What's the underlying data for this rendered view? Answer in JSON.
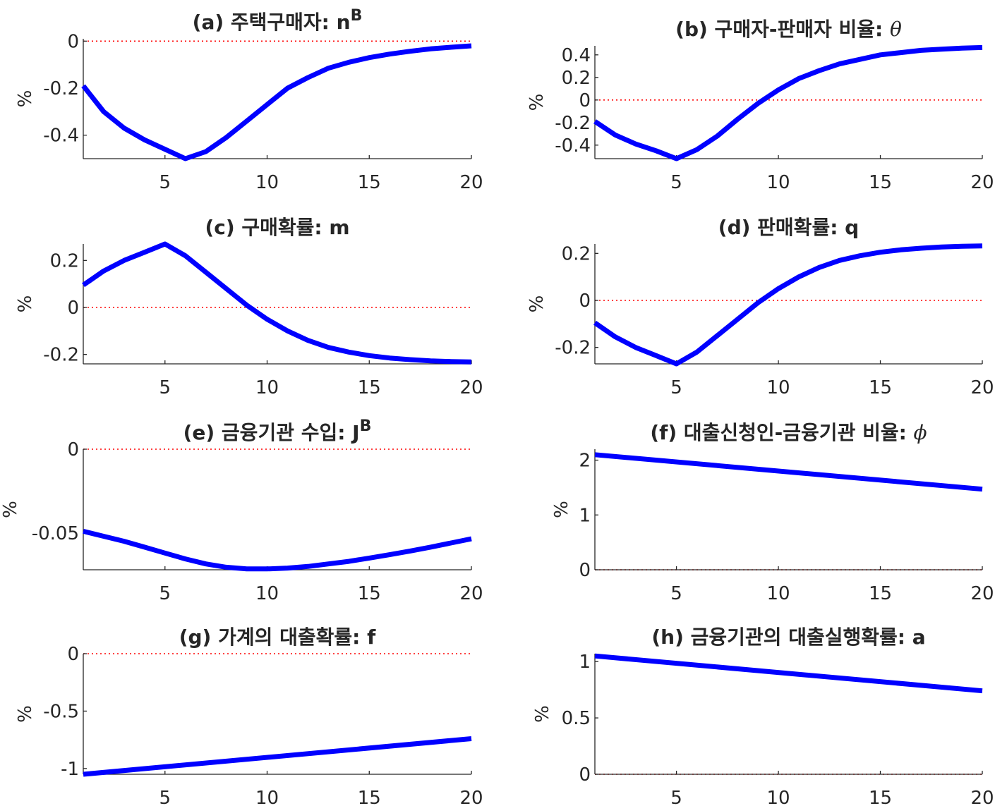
{
  "figure": {
    "ylabel": "%"
  },
  "chart_data": [
    {
      "id": "a",
      "type": "line",
      "title": "(a) 주택구매자: n",
      "title_sup": "B",
      "ylabel": "%",
      "xlim": [
        1,
        20
      ],
      "ylim": [
        -0.5,
        0.01
      ],
      "xticks": [
        5,
        10,
        15,
        20
      ],
      "yticks": [
        0,
        -0.2,
        -0.4
      ],
      "ytick_labels": [
        "0",
        "-0.2",
        "-0.4"
      ],
      "series": [
        {
          "x": [
            1,
            2,
            3,
            4,
            5,
            6,
            7,
            8,
            9,
            10,
            11,
            12,
            13,
            14,
            15,
            16,
            17,
            18,
            19,
            20
          ],
          "values": [
            -0.19,
            -0.3,
            -0.37,
            -0.42,
            -0.46,
            -0.5,
            -0.47,
            -0.41,
            -0.34,
            -0.27,
            -0.2,
            -0.155,
            -0.115,
            -0.09,
            -0.07,
            -0.055,
            -0.043,
            -0.033,
            -0.026,
            -0.02
          ]
        }
      ]
    },
    {
      "id": "b",
      "type": "line",
      "title": "(b) 구매자-판매자 비율: ",
      "title_sym": "θ",
      "ylabel": "%",
      "xlim": [
        1,
        20
      ],
      "ylim": [
        -0.52,
        0.48
      ],
      "xticks": [
        5,
        10,
        15,
        20
      ],
      "yticks": [
        0.4,
        0.2,
        0,
        -0.2,
        -0.4
      ],
      "ytick_labels": [
        "0.4",
        "0.2",
        "0",
        "-0.2",
        "-0.4"
      ],
      "series": [
        {
          "x": [
            1,
            2,
            3,
            4,
            5,
            6,
            7,
            8,
            9,
            10,
            11,
            12,
            13,
            14,
            15,
            16,
            17,
            18,
            19,
            20
          ],
          "values": [
            -0.19,
            -0.31,
            -0.39,
            -0.45,
            -0.52,
            -0.44,
            -0.32,
            -0.17,
            -0.03,
            0.09,
            0.19,
            0.26,
            0.32,
            0.36,
            0.4,
            0.42,
            0.44,
            0.45,
            0.46,
            0.465
          ]
        }
      ]
    },
    {
      "id": "c",
      "type": "line",
      "title": "(c) 구매확률: m",
      "ylabel": "%",
      "xlim": [
        1,
        20
      ],
      "ylim": [
        -0.24,
        0.27
      ],
      "xticks": [
        5,
        10,
        15,
        20
      ],
      "yticks": [
        0.2,
        0,
        -0.2
      ],
      "ytick_labels": [
        "0.2",
        "0",
        "-0.2"
      ],
      "series": [
        {
          "x": [
            1,
            2,
            3,
            4,
            5,
            6,
            7,
            8,
            9,
            10,
            11,
            12,
            13,
            14,
            15,
            16,
            17,
            18,
            19,
            20
          ],
          "values": [
            0.095,
            0.155,
            0.2,
            0.235,
            0.27,
            0.22,
            0.15,
            0.08,
            0.01,
            -0.05,
            -0.1,
            -0.14,
            -0.17,
            -0.19,
            -0.205,
            -0.215,
            -0.222,
            -0.227,
            -0.23,
            -0.232
          ]
        }
      ]
    },
    {
      "id": "d",
      "type": "line",
      "title": "(d) 판매확률: q",
      "ylabel": "%",
      "xlim": [
        1,
        20
      ],
      "ylim": [
        -0.27,
        0.24
      ],
      "xticks": [
        5,
        10,
        15,
        20
      ],
      "yticks": [
        0.2,
        0,
        -0.2
      ],
      "ytick_labels": [
        "0.2",
        "0",
        "-0.2"
      ],
      "series": [
        {
          "x": [
            1,
            2,
            3,
            4,
            5,
            6,
            7,
            8,
            9,
            10,
            11,
            12,
            13,
            14,
            15,
            16,
            17,
            18,
            19,
            20
          ],
          "values": [
            -0.095,
            -0.155,
            -0.2,
            -0.235,
            -0.27,
            -0.22,
            -0.15,
            -0.08,
            -0.01,
            0.05,
            0.1,
            0.14,
            0.17,
            0.19,
            0.205,
            0.215,
            0.222,
            0.227,
            0.23,
            0.232
          ]
        }
      ]
    },
    {
      "id": "e",
      "type": "line",
      "title": "(e) 금융기관 수입: J",
      "title_sup": "B",
      "ylabel": "%",
      "xlim": [
        1,
        20
      ],
      "ylim": [
        -0.072,
        0.0
      ],
      "xticks": [
        5,
        10,
        15,
        20
      ],
      "yticks": [
        0,
        -0.05
      ],
      "ytick_labels": [
        "0",
        "-0.05"
      ],
      "series": [
        {
          "x": [
            1,
            2,
            3,
            4,
            5,
            6,
            7,
            8,
            9,
            10,
            11,
            12,
            13,
            14,
            15,
            16,
            17,
            18,
            19,
            20
          ],
          "values": [
            -0.049,
            -0.052,
            -0.055,
            -0.0585,
            -0.062,
            -0.0655,
            -0.0685,
            -0.0705,
            -0.0715,
            -0.0715,
            -0.071,
            -0.07,
            -0.0685,
            -0.067,
            -0.065,
            -0.063,
            -0.0608,
            -0.0585,
            -0.056,
            -0.0535
          ]
        }
      ]
    },
    {
      "id": "f",
      "type": "line",
      "title": "(f) 대출신청인-금융기관 비율: ",
      "title_sym": "ϕ",
      "ylabel": "%",
      "xlim": [
        1,
        20
      ],
      "ylim": [
        0,
        2.2
      ],
      "xticks": [
        5,
        10,
        15,
        20
      ],
      "yticks": [
        2,
        1,
        0
      ],
      "ytick_labels": [
        "2",
        "1",
        "0"
      ],
      "series": [
        {
          "x": [
            1,
            20
          ],
          "values": [
            2.1,
            1.47
          ]
        }
      ]
    },
    {
      "id": "g",
      "type": "line",
      "title": "(g) 가계의 대출확률: f",
      "ylabel": "%",
      "xlim": [
        1,
        20
      ],
      "ylim": [
        -1.05,
        0
      ],
      "xticks": [
        5,
        10,
        15,
        20
      ],
      "yticks": [
        0,
        -0.5,
        -1
      ],
      "ytick_labels": [
        "0",
        "-0.5",
        "-1"
      ],
      "series": [
        {
          "x": [
            1,
            20
          ],
          "values": [
            -1.05,
            -0.74
          ]
        }
      ]
    },
    {
      "id": "h",
      "type": "line",
      "title": "(h) 금융기관의 대출실행확률: a",
      "ylabel": "%",
      "xlim": [
        1,
        20
      ],
      "ylim": [
        0,
        1.07
      ],
      "xticks": [
        5,
        10,
        15,
        20
      ],
      "yticks": [
        1,
        0.5,
        0
      ],
      "ytick_labels": [
        "1",
        "0.5",
        "0"
      ],
      "series": [
        {
          "x": [
            1,
            20
          ],
          "values": [
            1.05,
            0.74
          ]
        }
      ]
    }
  ]
}
